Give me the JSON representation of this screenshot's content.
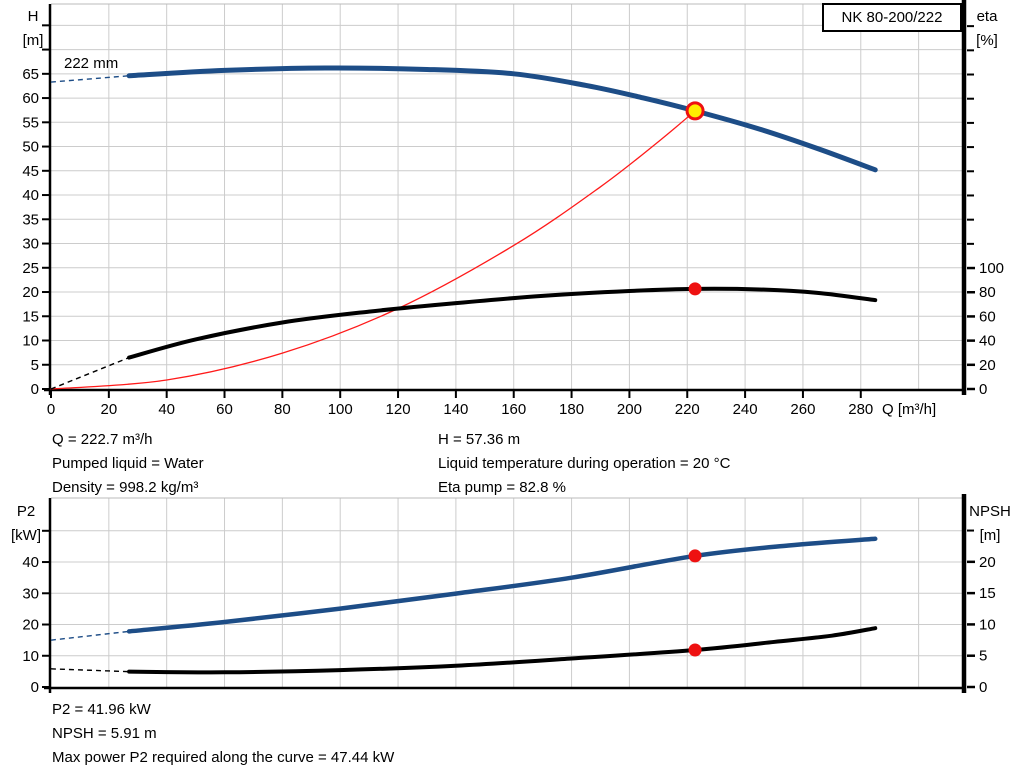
{
  "colors": {
    "curve_blue": "#1d4d87",
    "curve_black": "#000000",
    "curve_red": "#ff1a1a",
    "marker_red": "#ee1111",
    "marker_yellow": "#ffee00",
    "grid": "#cccccc",
    "frame_top": "#bbbbbb"
  },
  "top_info": {
    "left": [
      "Q = 222.7 m³/h",
      "Pumped liquid = Water",
      "Density = 998.2 kg/m³"
    ],
    "right": [
      "H = 57.36 m",
      "Liquid temperature during operation = 20 °C",
      "Eta pump = 82.8 %"
    ]
  },
  "bottom_info": [
    "P2 = 41.96 kW",
    "NPSH = 5.91 m",
    "Max power P2 required along the curve = 47.44 kW"
  ],
  "chart_data": [
    {
      "type": "line",
      "title": "NK 80-200/222",
      "xlabel": "Q [m³/h]",
      "x_ticks": [
        0,
        20,
        40,
        60,
        80,
        100,
        120,
        140,
        160,
        180,
        200,
        220,
        240,
        260,
        280
      ],
      "grid_x": [
        20,
        40,
        60,
        80,
        100,
        120,
        140,
        160,
        180,
        200,
        220,
        240,
        260,
        280,
        300
      ],
      "grid_y_left": [
        5,
        10,
        15,
        20,
        25,
        30,
        35,
        40,
        45,
        50,
        55,
        60,
        65,
        70,
        75
      ],
      "axes": {
        "left": {
          "label_lines": [
            "H",
            "[m]"
          ],
          "ticks": [
            0,
            5,
            10,
            15,
            20,
            25,
            30,
            35,
            40,
            45,
            50,
            55,
            60,
            65
          ],
          "extra_ticks": [
            70,
            75
          ],
          "range": [
            0,
            79.4
          ]
        },
        "right": {
          "label_lines": [
            "eta",
            "[%]"
          ],
          "ticks": [
            0,
            20,
            40,
            60,
            80,
            100
          ],
          "extra_ticks": [
            120,
            140,
            160,
            180,
            200,
            220,
            240,
            260,
            280,
            300
          ],
          "range": [
            0,
            318.3
          ]
        }
      },
      "series": [
        {
          "name": "system-curve",
          "axis": "left",
          "color": "#ff1a1a",
          "width": 1.3,
          "points": [
            [
              0,
              0
            ],
            [
              40,
              1.85
            ],
            [
              80,
              7.4
            ],
            [
              120,
              16.6
            ],
            [
              160,
              29.6
            ],
            [
              190,
              41.7
            ],
            [
              210,
              51.0
            ],
            [
              222.7,
              57.36
            ]
          ]
        },
        {
          "name": "efficiency-curve",
          "axis": "right",
          "color": "#000000",
          "width": 4,
          "lead_dash": [
            [
              0,
              0
            ],
            [
              27,
              26
            ]
          ],
          "points": [
            [
              27,
              26
            ],
            [
              50,
              41
            ],
            [
              80,
              55
            ],
            [
              110,
              64
            ],
            [
              140,
              71
            ],
            [
              170,
              77
            ],
            [
              200,
              81
            ],
            [
              222.7,
              82.8
            ],
            [
              245,
              82.3
            ],
            [
              265,
              79.5
            ],
            [
              285,
              73.5
            ]
          ]
        },
        {
          "name": "head-curve",
          "label": "222 mm",
          "axis": "left",
          "color": "#1d4d87",
          "width": 5,
          "lead_dash": [
            [
              0,
              63.3
            ],
            [
              27,
              64.6
            ]
          ],
          "points": [
            [
              27,
              64.6
            ],
            [
              60,
              65.7
            ],
            [
              95,
              66.2
            ],
            [
              130,
              65.9
            ],
            [
              160,
              65.0
            ],
            [
              185,
              62.6
            ],
            [
              205,
              60.0
            ],
            [
              222.7,
              57.36
            ],
            [
              245,
              53.6
            ],
            [
              265,
              49.6
            ],
            [
              285,
              45.2
            ]
          ]
        }
      ],
      "markers": [
        {
          "name": "eta-point-marker",
          "x": 222.7,
          "axis": "right",
          "value": 82.8,
          "style": "dot",
          "fill": "#ee1111"
        },
        {
          "name": "duty-point-marker",
          "x": 222.7,
          "axis": "left",
          "value": 57.36,
          "style": "ring",
          "fill": "#ffee00",
          "stroke": "#ee1111"
        }
      ]
    },
    {
      "type": "line",
      "title": "",
      "xlabel": "",
      "x_ticks": [],
      "grid_x": [
        20,
        40,
        60,
        80,
        100,
        120,
        140,
        160,
        180,
        200,
        220,
        240,
        260,
        280,
        300
      ],
      "grid_y_left": [
        10,
        20,
        30,
        40,
        50
      ],
      "axes": {
        "left": {
          "label_lines": [
            "P2",
            "[kW]"
          ],
          "ticks": [
            0,
            10,
            20,
            30,
            40
          ],
          "extra_ticks": [
            50
          ],
          "range": [
            0,
            60.5
          ]
        },
        "right": {
          "label_lines": [
            "NPSH",
            "[m]"
          ],
          "ticks": [
            0,
            5,
            10,
            15,
            20
          ],
          "extra_ticks": [
            25
          ],
          "range": [
            0,
            30.2
          ]
        }
      },
      "series": [
        {
          "name": "p2-curve",
          "axis": "left",
          "color": "#1d4d87",
          "width": 4.5,
          "lead_dash": [
            [
              0,
              15
            ],
            [
              27,
              17.8
            ]
          ],
          "points": [
            [
              27,
              17.8
            ],
            [
              60,
              20.8
            ],
            [
              100,
              25.1
            ],
            [
              140,
              29.9
            ],
            [
              180,
              35.0
            ],
            [
              222.7,
              41.96
            ],
            [
              255,
              45.3
            ],
            [
              285,
              47.44
            ]
          ]
        },
        {
          "name": "npsh-curve",
          "axis": "right",
          "color": "#000000",
          "width": 4,
          "lead_dash": [
            [
              0,
              2.9
            ],
            [
              27,
              2.45
            ]
          ],
          "points": [
            [
              27,
              2.45
            ],
            [
              60,
              2.35
            ],
            [
              100,
              2.7
            ],
            [
              140,
              3.4
            ],
            [
              180,
              4.55
            ],
            [
              222.7,
              5.91
            ],
            [
              250,
              7.2
            ],
            [
              270,
              8.2
            ],
            [
              285,
              9.4
            ]
          ]
        }
      ],
      "markers": [
        {
          "name": "p2-point-marker",
          "x": 222.7,
          "axis": "left",
          "value": 41.96,
          "style": "dot",
          "fill": "#ee1111"
        },
        {
          "name": "npsh-point-marker",
          "x": 222.7,
          "axis": "right",
          "value": 5.91,
          "style": "dot",
          "fill": "#ee1111"
        }
      ]
    }
  ]
}
